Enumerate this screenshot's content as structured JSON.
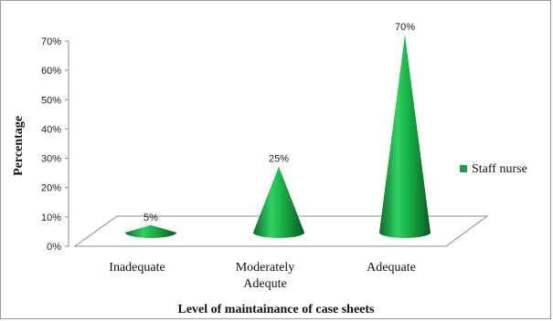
{
  "chart_data": {
    "type": "bar",
    "shape": "cone-3d",
    "categories": [
      "Inadequate",
      "Moderately Adequte",
      "Adequate"
    ],
    "category_lines": [
      [
        "Inadequate"
      ],
      [
        "Moderately",
        "Adequte"
      ],
      [
        "Adequate"
      ]
    ],
    "series": [
      {
        "name": "Staff nurse",
        "values": [
          5,
          25,
          70
        ],
        "color": "#17a34a"
      }
    ],
    "data_labels": [
      "5%",
      "25%",
      "70%"
    ],
    "y_ticks": [
      "0%",
      "10%",
      "20%",
      "30%",
      "40%",
      "50%",
      "60%",
      "70%"
    ],
    "ylim": [
      0,
      70
    ],
    "xlabel": "Level of maintainance of  case sheets",
    "ylabel": "Percentage",
    "legend_position": "right",
    "grid": false
  }
}
